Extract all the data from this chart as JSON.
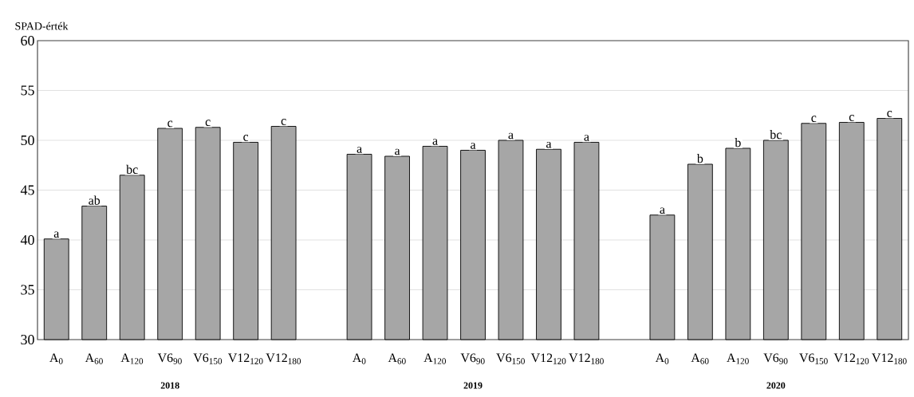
{
  "chart_data": {
    "type": "bar",
    "ylabel": "SPAD-érték",
    "categories": [
      "A$_{0}$",
      "A$_{60}$",
      "A$_{120}$",
      "V6$_{90}$",
      "V6$_{150}$",
      "V12$_{120}$",
      "V12$_{180}$",
      null,
      "A$_{0}$",
      "A$_{60}$",
      "A$_{120}$",
      "V6$_{90}$",
      "V6$_{150}$",
      "V12$_{120}$",
      "V12$_{180}$",
      null,
      "A$_{0}$",
      "A$_{60}$",
      "A$_{120}$",
      "V6$_{90}$",
      "V6$_{150}$",
      "V12$_{120}$",
      "V12$_{180}$"
    ],
    "values": [
      40.1,
      43.4,
      46.5,
      51.2,
      51.3,
      49.8,
      51.4,
      null,
      48.6,
      48.4,
      49.4,
      49.0,
      50.0,
      49.1,
      49.8,
      null,
      42.5,
      47.6,
      49.2,
      50.0,
      51.7,
      51.8,
      52.2
    ],
    "value_labels": [
      "a",
      "ab",
      "bc",
      "c",
      "c",
      "c",
      "c",
      null,
      "a",
      "a",
      "a",
      "a",
      "a",
      "a",
      "a",
      null,
      "a",
      "b",
      "b",
      "bc",
      "c",
      "c",
      "c"
    ],
    "color": "#a6a6a6",
    "ylim": [
      30,
      60
    ],
    "yticks": [
      30,
      35,
      40,
      45,
      50,
      55,
      60
    ],
    "grid": "y",
    "annotations": [
      "2018",
      "2019",
      "2020"
    ]
  }
}
